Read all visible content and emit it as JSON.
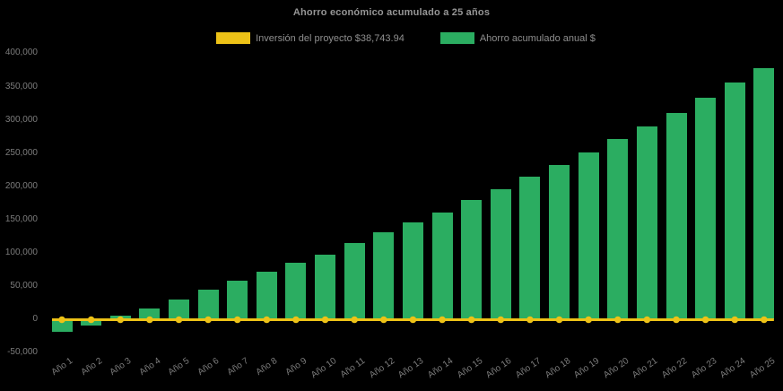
{
  "chart_data": {
    "type": "bar",
    "title": "Ahorro económico acumulado a 25 años",
    "background_color": "#000000",
    "grid": false,
    "legend_position": "top",
    "categories": [
      "Año 1",
      "Año 2",
      "Año 3",
      "Año 4",
      "Año 5",
      "Año 6",
      "Año 7",
      "Año 8",
      "Año 9",
      "Año 10",
      "Año 11",
      "Año 12",
      "Año 13",
      "Año 14",
      "Año 15",
      "Año 16",
      "Año 17",
      "Año 18",
      "Año 19",
      "Año 20",
      "Año 21",
      "Año 22",
      "Año 23",
      "Año 24",
      "Año 25"
    ],
    "series": [
      {
        "name": "Inversión del proyecto $38,743.94",
        "type": "line",
        "color": "#EDC217",
        "marker": "circle",
        "investment_amount_text": "$38,743.94",
        "plotted_constant_value": 0
      },
      {
        "name": "Ahorro acumulado anual $",
        "type": "bar",
        "color": "#2BAD61",
        "values": [
          -19000,
          -10000,
          5500,
          16000,
          29500,
          44000,
          57500,
          71000,
          85000,
          97500,
          114000,
          130500,
          145500,
          160500,
          179500,
          195500,
          214000,
          232500,
          250500,
          270500,
          290000,
          310500,
          332500,
          355500,
          377000
        ]
      }
    ],
    "xlabel": "",
    "ylabel": "",
    "ylim": [
      -50000,
      400000
    ],
    "ytick_step": 50000,
    "ytick_values": [
      400000,
      350000,
      300000,
      250000,
      200000,
      150000,
      100000,
      50000,
      0,
      -50000
    ],
    "ytick_labels": [
      "400,000",
      "350,000",
      "300,000",
      "250,000",
      "200,000",
      "150,000",
      "100,000",
      "50,000",
      "0",
      "-50,000"
    ]
  },
  "colors": {
    "background": "#000000",
    "investment_line": "#EDC217",
    "savings_bar": "#2BAD61",
    "title_text": "#969696",
    "legend_text": "#8f8f8f",
    "axis_text": "#7c7c7c"
  }
}
